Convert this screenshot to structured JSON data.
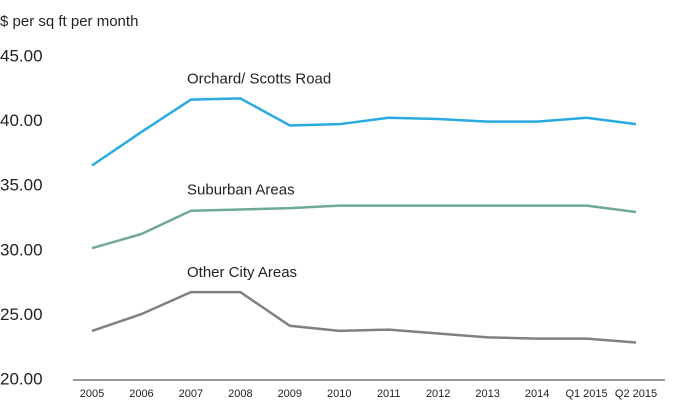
{
  "chart_data": {
    "type": "line",
    "y_label": "$ per sq ft per month",
    "categories": [
      "2005",
      "2006",
      "2007",
      "2008",
      "2009",
      "2010",
      "2011",
      "2012",
      "2013",
      "2014",
      "Q1 2015",
      "Q2 2015"
    ],
    "series": [
      {
        "name": "Orchard/ Scotts Road",
        "color": "#29abe2",
        "values": [
          36.6,
          39.2,
          41.7,
          41.8,
          39.7,
          39.8,
          40.3,
          40.2,
          40.0,
          40.0,
          40.3,
          39.8
        ]
      },
      {
        "name": "Suburban Areas",
        "color": "#6fa89a",
        "values": [
          30.2,
          31.3,
          33.1,
          33.2,
          33.3,
          33.5,
          33.5,
          33.5,
          33.5,
          33.5,
          33.5,
          33.0
        ]
      },
      {
        "name": "Other City Areas",
        "color": "#808080",
        "values": [
          23.8,
          25.1,
          26.8,
          26.8,
          24.2,
          23.8,
          23.9,
          23.6,
          23.3,
          23.2,
          23.2,
          22.9
        ]
      }
    ],
    "ylim": [
      20,
      45
    ],
    "yticks": [
      {
        "value": 20,
        "label": "20.00"
      },
      {
        "value": 25,
        "label": "25.00"
      },
      {
        "value": 30,
        "label": "30.00"
      },
      {
        "value": 35,
        "label": "35.00"
      },
      {
        "value": 40,
        "label": "40.00"
      },
      {
        "value": 45,
        "label": "45.00"
      }
    ],
    "grid": false
  }
}
